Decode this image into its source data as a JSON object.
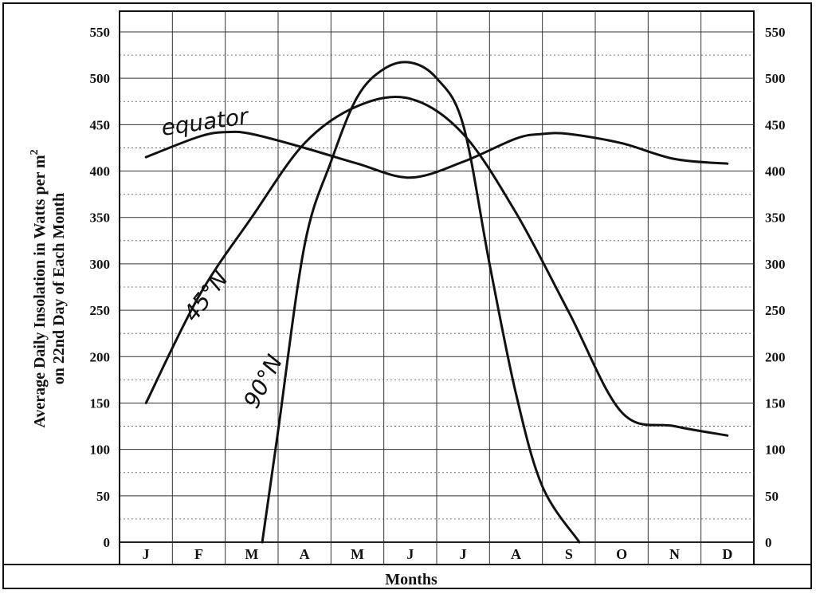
{
  "chart_data": {
    "type": "line",
    "ylabel_line1": "Average Daily Insolation in Watts per m",
    "ylabel_sup": "2",
    "ylabel_line2": "on 22nd Day of Each Month",
    "xlabel": "Months",
    "categories": [
      "J",
      "F",
      "M",
      "A",
      "M",
      "J",
      "J",
      "A",
      "S",
      "O",
      "N",
      "D"
    ],
    "ylim": [
      0,
      550
    ],
    "yticks": [
      0,
      50,
      100,
      150,
      200,
      250,
      300,
      350,
      400,
      450,
      500,
      550
    ],
    "grid": true,
    "series": [
      {
        "name": "equator",
        "x": [
          0,
          1,
          1.5,
          2,
          3,
          4,
          5,
          6,
          7,
          7.5,
          8,
          9,
          10,
          11
        ],
        "y": [
          415,
          437,
          442,
          440,
          425,
          408,
          393,
          410,
          435,
          440,
          440,
          430,
          413,
          408
        ]
      },
      {
        "name": "45°N",
        "x": [
          0,
          1,
          2,
          3,
          4,
          5,
          6,
          7,
          8,
          9,
          10,
          11
        ],
        "y": [
          150,
          265,
          350,
          430,
          470,
          478,
          440,
          355,
          248,
          140,
          125,
          115
        ]
      },
      {
        "name": "90°N",
        "x": [
          2.2,
          2.5,
          3,
          3.5,
          4,
          4.5,
          5,
          5.5,
          6,
          6.5,
          7,
          7.5,
          8.2
        ],
        "y": [
          0,
          120,
          320,
          410,
          480,
          510,
          517,
          500,
          450,
          300,
          160,
          60,
          0
        ]
      }
    ]
  }
}
